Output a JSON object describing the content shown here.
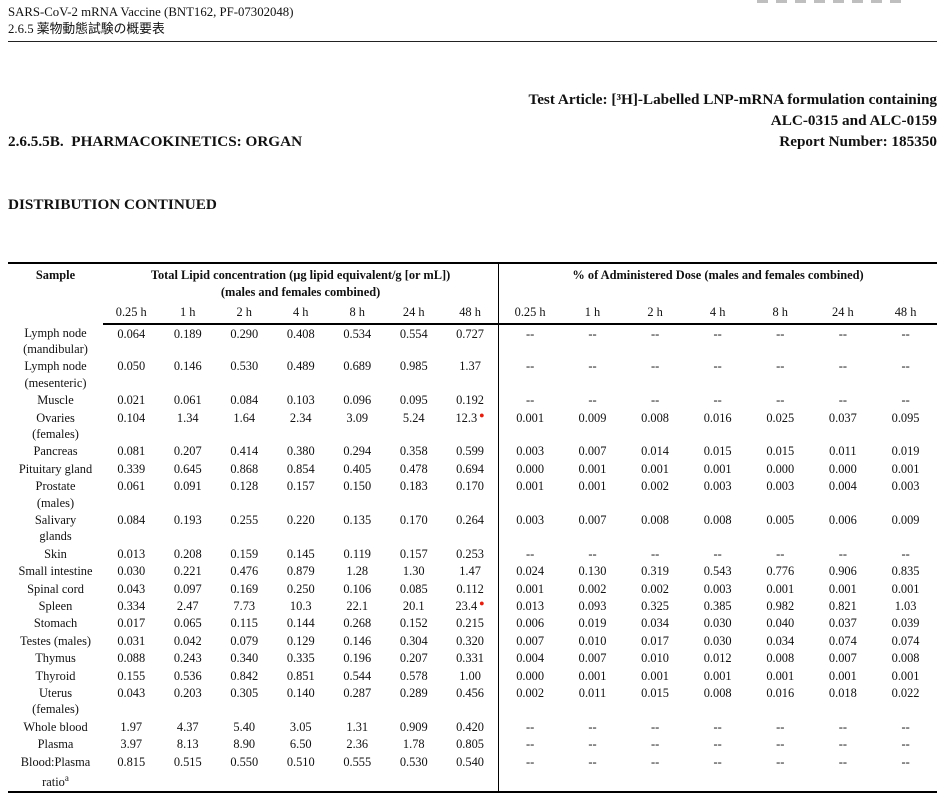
{
  "page_header": {
    "line1": "SARS-CoV-2 mRNA Vaccine (BNT162, PF-07302048)",
    "line2": "2.6.5 薬物動態試験の概要表"
  },
  "title_block": {
    "left_line1": "2.6.5.5B.  PHARMACOKINETICS: ORGAN",
    "left_line2": "DISTRIBUTION CONTINUED",
    "right_line1": "Test Article: [³H]-Labelled LNP-mRNA formulation containing",
    "right_line2": "ALC-0315 and ALC-0159",
    "right_line3": "Report Number: 185350"
  },
  "table": {
    "sample_header": "Sample",
    "section1_header": "Total Lipid concentration (µg lipid equivalent/g [or mL])",
    "section1_subheader": "(males and females combined)",
    "section2_header": "% of Administered Dose (males and females combined)",
    "time_points": [
      "0.25 h",
      "1 h",
      "2 h",
      "4 h",
      "8 h",
      "24 h",
      "48 h"
    ],
    "marker_color": "#e02010",
    "rows": [
      {
        "sample": "Lymph node\n(mandibular)",
        "lipid": [
          "0.064",
          "0.189",
          "0.290",
          "0.408",
          "0.534",
          "0.554",
          "0.727"
        ],
        "dose": [
          "--",
          "--",
          "--",
          "--",
          "--",
          "--",
          "--"
        ]
      },
      {
        "sample": "Lymph node\n(mesenteric)",
        "lipid": [
          "0.050",
          "0.146",
          "0.530",
          "0.489",
          "0.689",
          "0.985",
          "1.37"
        ],
        "dose": [
          "--",
          "--",
          "--",
          "--",
          "--",
          "--",
          "--"
        ]
      },
      {
        "sample": "Muscle",
        "lipid": [
          "0.021",
          "0.061",
          "0.084",
          "0.103",
          "0.096",
          "0.095",
          "0.192"
        ],
        "dose": [
          "--",
          "--",
          "--",
          "--",
          "--",
          "--",
          "--"
        ]
      },
      {
        "sample": "Ovaries\n(females)",
        "lipid": [
          "0.104",
          "1.34",
          "1.64",
          "2.34",
          "3.09",
          "5.24",
          "12.3"
        ],
        "lipid_marker": 6,
        "dose": [
          "0.001",
          "0.009",
          "0.008",
          "0.016",
          "0.025",
          "0.037",
          "0.095"
        ]
      },
      {
        "sample": "Pancreas",
        "lipid": [
          "0.081",
          "0.207",
          "0.414",
          "0.380",
          "0.294",
          "0.358",
          "0.599"
        ],
        "dose": [
          "0.003",
          "0.007",
          "0.014",
          "0.015",
          "0.015",
          "0.011",
          "0.019"
        ]
      },
      {
        "sample": "Pituitary gland",
        "lipid": [
          "0.339",
          "0.645",
          "0.868",
          "0.854",
          "0.405",
          "0.478",
          "0.694"
        ],
        "dose": [
          "0.000",
          "0.001",
          "0.001",
          "0.001",
          "0.000",
          "0.000",
          "0.001"
        ]
      },
      {
        "sample": "Prostate\n(males)",
        "lipid": [
          "0.061",
          "0.091",
          "0.128",
          "0.157",
          "0.150",
          "0.183",
          "0.170"
        ],
        "dose": [
          "0.001",
          "0.001",
          "0.002",
          "0.003",
          "0.003",
          "0.004",
          "0.003"
        ]
      },
      {
        "sample": "Salivary\nglands",
        "lipid": [
          "0.084",
          "0.193",
          "0.255",
          "0.220",
          "0.135",
          "0.170",
          "0.264"
        ],
        "dose": [
          "0.003",
          "0.007",
          "0.008",
          "0.008",
          "0.005",
          "0.006",
          "0.009"
        ]
      },
      {
        "sample": "Skin",
        "lipid": [
          "0.013",
          "0.208",
          "0.159",
          "0.145",
          "0.119",
          "0.157",
          "0.253"
        ],
        "dose": [
          "--",
          "--",
          "--",
          "--",
          "--",
          "--",
          "--"
        ]
      },
      {
        "sample": "Small intestine",
        "lipid": [
          "0.030",
          "0.221",
          "0.476",
          "0.879",
          "1.28",
          "1.30",
          "1.47"
        ],
        "dose": [
          "0.024",
          "0.130",
          "0.319",
          "0.543",
          "0.776",
          "0.906",
          "0.835"
        ]
      },
      {
        "sample": "Spinal cord",
        "lipid": [
          "0.043",
          "0.097",
          "0.169",
          "0.250",
          "0.106",
          "0.085",
          "0.112"
        ],
        "dose": [
          "0.001",
          "0.002",
          "0.002",
          "0.003",
          "0.001",
          "0.001",
          "0.001"
        ]
      },
      {
        "sample": "Spleen",
        "lipid": [
          "0.334",
          "2.47",
          "7.73",
          "10.3",
          "22.1",
          "20.1",
          "23.4"
        ],
        "lipid_marker": 6,
        "dose": [
          "0.013",
          "0.093",
          "0.325",
          "0.385",
          "0.982",
          "0.821",
          "1.03"
        ]
      },
      {
        "sample": "Stomach",
        "lipid": [
          "0.017",
          "0.065",
          "0.115",
          "0.144",
          "0.268",
          "0.152",
          "0.215"
        ],
        "dose": [
          "0.006",
          "0.019",
          "0.034",
          "0.030",
          "0.040",
          "0.037",
          "0.039"
        ]
      },
      {
        "sample": "Testes (males)",
        "lipid": [
          "0.031",
          "0.042",
          "0.079",
          "0.129",
          "0.146",
          "0.304",
          "0.320"
        ],
        "dose": [
          "0.007",
          "0.010",
          "0.017",
          "0.030",
          "0.034",
          "0.074",
          "0.074"
        ]
      },
      {
        "sample": "Thymus",
        "lipid": [
          "0.088",
          "0.243",
          "0.340",
          "0.335",
          "0.196",
          "0.207",
          "0.331"
        ],
        "dose": [
          "0.004",
          "0.007",
          "0.010",
          "0.012",
          "0.008",
          "0.007",
          "0.008"
        ]
      },
      {
        "sample": "Thyroid",
        "lipid": [
          "0.155",
          "0.536",
          "0.842",
          "0.851",
          "0.544",
          "0.578",
          "1.00"
        ],
        "dose": [
          "0.000",
          "0.001",
          "0.001",
          "0.001",
          "0.001",
          "0.001",
          "0.001"
        ]
      },
      {
        "sample": "Uterus\n(females)",
        "lipid": [
          "0.043",
          "0.203",
          "0.305",
          "0.140",
          "0.287",
          "0.289",
          "0.456"
        ],
        "dose": [
          "0.002",
          "0.011",
          "0.015",
          "0.008",
          "0.016",
          "0.018",
          "0.022"
        ]
      },
      {
        "sample": "Whole blood",
        "lipid": [
          "1.97",
          "4.37",
          "5.40",
          "3.05",
          "1.31",
          "0.909",
          "0.420"
        ],
        "dose": [
          "--",
          "--",
          "--",
          "--",
          "--",
          "--",
          "--"
        ]
      },
      {
        "sample": "Plasma",
        "lipid": [
          "3.97",
          "8.13",
          "8.90",
          "6.50",
          "2.36",
          "1.78",
          "0.805"
        ],
        "dose": [
          "--",
          "--",
          "--",
          "--",
          "--",
          "--",
          "--"
        ]
      },
      {
        "sample": "Blood:Plasma\nratio",
        "sample_sup": "a",
        "lipid": [
          "0.815",
          "0.515",
          "0.550",
          "0.510",
          "0.555",
          "0.530",
          "0.540"
        ],
        "dose": [
          "--",
          "--",
          "--",
          "--",
          "--",
          "--",
          "--"
        ]
      }
    ]
  }
}
